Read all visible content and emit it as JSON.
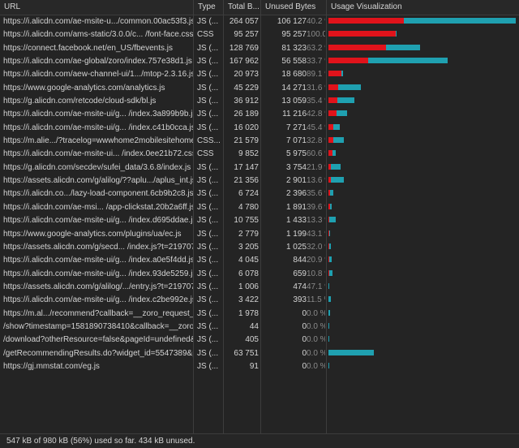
{
  "columns": {
    "url": "URL",
    "type": "Type",
    "total": "Total B...",
    "unused": "Unused Bytes",
    "viz": "Usage Visualization"
  },
  "rows": [
    {
      "url": "https://i.alicdn.com/ae-msite-u.../common.00ac53f3.js",
      "type": "JS (...",
      "total": "264 057",
      "unused": "106 127",
      "pct": "40.2 %",
      "total_bytes": 264057,
      "unused_bytes": 106127
    },
    {
      "url": "https://i.alicdn.com/ams-static/3.0.0/c... /font-face.css",
      "type": "CSS",
      "total": "95 257",
      "unused": "95 257",
      "pct": "100.0 %",
      "total_bytes": 95257,
      "unused_bytes": 95257
    },
    {
      "url": "https://connect.facebook.net/en_US/fbevents.js",
      "type": "JS (...",
      "total": "128 769",
      "unused": "81 323",
      "pct": "63.2 %",
      "total_bytes": 128769,
      "unused_bytes": 81323
    },
    {
      "url": "https://i.alicdn.com/ae-global/zoro/index.757e38d1.js",
      "type": "JS (...",
      "total": "167 962",
      "unused": "56 558",
      "pct": "33.7 %",
      "total_bytes": 167962,
      "unused_bytes": 56558
    },
    {
      "url": "https://i.alicdn.com/aew-channel-ui/1.../mtop-2.3.16.js",
      "type": "JS (...",
      "total": "20 973",
      "unused": "18 680",
      "pct": "89.1 %",
      "total_bytes": 20973,
      "unused_bytes": 18680
    },
    {
      "url": "https://www.google-analytics.com/analytics.js",
      "type": "JS (...",
      "total": "45 229",
      "unused": "14 271",
      "pct": "31.6 %",
      "total_bytes": 45229,
      "unused_bytes": 14271
    },
    {
      "url": "https://g.alicdn.com/retcode/cloud-sdk/bl.js",
      "type": "JS (...",
      "total": "36 912",
      "unused": "13 059",
      "pct": "35.4 %",
      "total_bytes": 36912,
      "unused_bytes": 13059
    },
    {
      "url": "https://i.alicdn.com/ae-msite-ui/g... /index.3a899b9b.js",
      "type": "JS (...",
      "total": "26 189",
      "unused": "11 216",
      "pct": "42.8 %",
      "total_bytes": 26189,
      "unused_bytes": 11216
    },
    {
      "url": "https://i.alicdn.com/ae-msite-ui/g... /index.c41b0cca.js",
      "type": "JS (...",
      "total": "16 020",
      "unused": "7 271",
      "pct": "45.4 %",
      "total_bytes": 16020,
      "unused_bytes": 7271
    },
    {
      "url": "https://m.alie.../?tracelog=wwwhome2mobilesitehome",
      "type": "CSS...",
      "total": "21 579",
      "unused": "7 071",
      "pct": "32.8 %",
      "total_bytes": 21579,
      "unused_bytes": 7071
    },
    {
      "url": "https://i.alicdn.com/ae-msite-ui... /index.0ee21b72.css",
      "type": "CSS",
      "total": "9 852",
      "unused": "5 975",
      "pct": "60.6 %",
      "total_bytes": 9852,
      "unused_bytes": 5975
    },
    {
      "url": "https://g.alicdn.com/secdev/sufei_data/3.6.8/index.js",
      "type": "JS (...",
      "total": "17 147",
      "unused": "3 754",
      "pct": "21.9 %",
      "total_bytes": 17147,
      "unused_bytes": 3754
    },
    {
      "url": "https://assets.alicdn.com/g/alilog/??aplu.../aplus_int.js",
      "type": "JS (...",
      "total": "21 356",
      "unused": "2 901",
      "pct": "13.6 %",
      "total_bytes": 21356,
      "unused_bytes": 2901
    },
    {
      "url": "https://i.alicdn.co.../lazy-load-component.6cb9b2c8.js",
      "type": "JS (...",
      "total": "6 724",
      "unused": "2 396",
      "pct": "35.6 %",
      "total_bytes": 6724,
      "unused_bytes": 2396
    },
    {
      "url": "https://i.alicdn.com/ae-msi... /app-clickstat.20b2a6ff.js",
      "type": "JS (...",
      "total": "4 780",
      "unused": "1 891",
      "pct": "39.6 %",
      "total_bytes": 4780,
      "unused_bytes": 1891
    },
    {
      "url": "https://i.alicdn.com/ae-msite-ui/g... /index.d695ddae.js",
      "type": "JS (...",
      "total": "10 755",
      "unused": "1 433",
      "pct": "13.3 %",
      "total_bytes": 10755,
      "unused_bytes": 1433
    },
    {
      "url": "https://www.google-analytics.com/plugins/ua/ec.js",
      "type": "JS (...",
      "total": "2 779",
      "unused": "1 199",
      "pct": "43.1 %",
      "total_bytes": 2779,
      "unused_bytes": 1199
    },
    {
      "url": "https://assets.alicdn.com/g/secd... /index.js?t=219707",
      "type": "JS (...",
      "total": "3 205",
      "unused": "1 025",
      "pct": "32.0 %",
      "total_bytes": 3205,
      "unused_bytes": 1025
    },
    {
      "url": "https://i.alicdn.com/ae-msite-ui/g... /index.a0e5f4dd.js",
      "type": "JS (...",
      "total": "4 045",
      "unused": "844",
      "pct": "20.9 %",
      "total_bytes": 4045,
      "unused_bytes": 844
    },
    {
      "url": "https://i.alicdn.com/ae-msite-ui/g... /index.93de5259.js",
      "type": "JS (...",
      "total": "6 078",
      "unused": "659",
      "pct": "10.8 %",
      "total_bytes": 6078,
      "unused_bytes": 659
    },
    {
      "url": "https://assets.alicdn.com/g/alilog/.../entry.js?t=219707",
      "type": "JS (...",
      "total": "1 006",
      "unused": "474",
      "pct": "47.1 %",
      "total_bytes": 1006,
      "unused_bytes": 474
    },
    {
      "url": "https://i.alicdn.com/ae-msite-ui/g... /index.c2be992e.js",
      "type": "JS (...",
      "total": "3 422",
      "unused": "393",
      "pct": "11.5 %",
      "total_bytes": 3422,
      "unused_bytes": 393
    },
    {
      "url": "https://m.al.../recommend?callback=__zoro_request_1",
      "type": "JS (...",
      "total": "1 978",
      "unused": "0",
      "pct": "0.0 %",
      "total_bytes": 1978,
      "unused_bytes": 0
    },
    {
      "url": "/show?timestamp=1581890738410&callback=__zoro_r",
      "type": "JS (...",
      "total": "44",
      "unused": "0",
      "pct": "0.0 %",
      "total_bytes": 44,
      "unused_bytes": 0
    },
    {
      "url": "/download?otherResource=false&pageId=undefined&cl",
      "type": "JS (...",
      "total": "405",
      "unused": "0",
      "pct": "0.0 %",
      "total_bytes": 405,
      "unused_bytes": 0
    },
    {
      "url": "/getRecommendingResults.do?widget_id=5547389&ph",
      "type": "JS (...",
      "total": "63 751",
      "unused": "0",
      "pct": "0.0 %",
      "total_bytes": 63751,
      "unused_bytes": 0
    },
    {
      "url": "https://gj.mmstat.com/eg.js",
      "type": "JS (...",
      "total": "91",
      "unused": "0",
      "pct": "0.0 %",
      "total_bytes": 91,
      "unused_bytes": 0
    }
  ],
  "footer": {
    "summary": "547 kB of 980 kB (56%) used so far. 434 kB unused."
  },
  "colors": {
    "used": "#1fa0b0",
    "unused": "#e0131b",
    "background": "#242424"
  }
}
